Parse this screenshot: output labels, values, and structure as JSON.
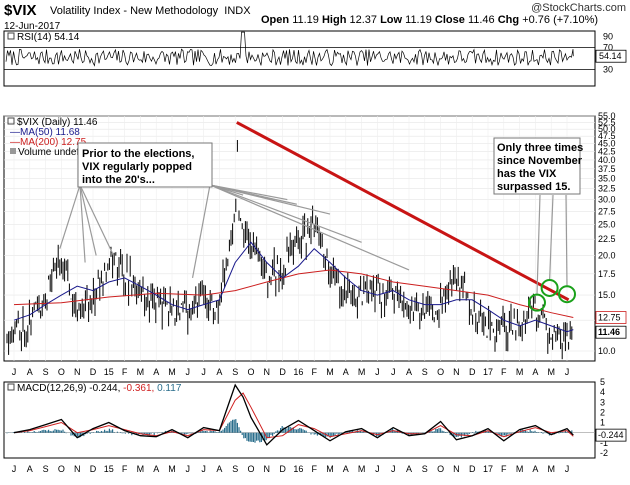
{
  "header": {
    "ticker": "$VIX",
    "full_name": "Volatility Index - New Methodology",
    "exchange": "INDX",
    "date": "12-Jun-2017",
    "open_label": "Open",
    "open": "11.19",
    "high_label": "High",
    "high": "12.37",
    "low_label": "Low",
    "low": "11.19",
    "close_label": "Close",
    "close": "11.46",
    "chg_label": "Chg",
    "chg": "+0.76 (+7.10%)",
    "logo": "@StockCharts.com"
  },
  "colors": {
    "price": "#000000",
    "ma50": "#1a1a8c",
    "ma200": "#cc1f1f",
    "trendline": "#c81414",
    "callout": "#9a9a9a",
    "circles": "#1aa11a",
    "macd_hist": "#2a6e8c",
    "macd_signal": "#d02020",
    "close_tag": "#ffffff"
  },
  "chart_data": [
    {
      "type": "line",
      "name": "rsi_panel",
      "legend": "RSI(14) 54.14",
      "last_value": 54.14,
      "last_value_label": "54.14",
      "ylim": [
        0,
        100
      ],
      "reference_lines": [
        30,
        70
      ],
      "yticks": [
        30,
        50,
        70,
        90
      ],
      "ytick_labels": [
        "30",
        "50",
        "70",
        "90"
      ]
    },
    {
      "type": "line",
      "name": "price_panel",
      "legend": [
        {
          "label": "$VIX (Daily) 11.46",
          "icon": "chart-icon"
        },
        {
          "label": "MA(50) 11.68"
        },
        {
          "label": "MA(200) 12.75"
        },
        {
          "label": "Volume undef"
        }
      ],
      "y_scale": "log",
      "ylim": [
        9.3,
        55
      ],
      "yticks": [
        10,
        12.5,
        15,
        17.5,
        20,
        22.5,
        25,
        27.5,
        30,
        32.5,
        35,
        37.5,
        40,
        42.5,
        45,
        47.5,
        50,
        52.5,
        55
      ],
      "ytick_labels": [
        "10.0",
        "12.5",
        "15.0",
        "17.5",
        "20.0",
        "22.5",
        "25.0",
        "27.5",
        "30.0",
        "32.5",
        "35.0",
        "37.5",
        "40.0",
        "42.5",
        "45.0",
        "47.5",
        "50.0",
        "52.5",
        "55.0"
      ],
      "x_months": [
        "J",
        "A",
        "S",
        "O",
        "N",
        "D",
        "15",
        "F",
        "M",
        "A",
        "M",
        "J",
        "J",
        "A",
        "S",
        "O",
        "N",
        "D",
        "16",
        "F",
        "M",
        "A",
        "M",
        "J",
        "J",
        "A",
        "S",
        "O",
        "N",
        "D",
        "17",
        "F",
        "M",
        "A",
        "M",
        "J"
      ],
      "series": [
        {
          "name": "$VIX (Daily)",
          "style": "hlc-bars",
          "x": [
            0,
            1,
            2,
            3,
            4,
            5,
            6,
            7,
            8,
            9,
            10,
            11,
            12,
            13,
            14,
            15,
            16,
            17,
            18,
            19,
            20,
            21,
            22,
            23,
            24,
            25,
            26,
            27,
            28,
            29,
            30,
            31,
            32,
            33,
            34,
            35,
            35.4
          ],
          "values": [
            11.5,
            12.5,
            15,
            19.5,
            13.5,
            14.5,
            20,
            17.5,
            15,
            14.5,
            13.5,
            13.5,
            14.5,
            13,
            28,
            22,
            17,
            18,
            22,
            24,
            18,
            15,
            15,
            15.5,
            15,
            13.5,
            13.5,
            14,
            17.5,
            13.5,
            12,
            11.5,
            12,
            13.5,
            11,
            10.5,
            11.46
          ]
        },
        {
          "name": "MA(50)",
          "x": [
            0,
            1,
            2,
            3,
            4,
            5,
            6,
            7,
            8,
            9,
            10,
            11,
            12,
            13,
            14,
            15,
            16,
            17,
            18,
            19,
            20,
            21,
            22,
            23,
            24,
            25,
            26,
            27,
            28,
            29,
            30,
            31,
            32,
            33,
            34,
            35,
            35.4
          ],
          "values": [
            12.5,
            13,
            14,
            15,
            16,
            15.5,
            16.5,
            17,
            16,
            15,
            14,
            13.5,
            14,
            14.5,
            19,
            22,
            19,
            17,
            18.5,
            21,
            19,
            17,
            15.5,
            15,
            15.5,
            14.5,
            14,
            14,
            14.5,
            14.5,
            13.5,
            12.5,
            12,
            12.5,
            12,
            11.5,
            11.68
          ]
        },
        {
          "name": "MA(200)",
          "x": [
            0,
            3,
            6,
            9,
            12,
            14,
            16,
            18,
            20,
            22,
            24,
            26,
            28,
            30,
            32,
            34,
            35.4
          ],
          "values": [
            14,
            14.2,
            14.8,
            15.2,
            15,
            15.5,
            16.5,
            17.5,
            18,
            17.5,
            16.5,
            16,
            15.5,
            15,
            14,
            13.2,
            12.75
          ]
        }
      ],
      "last_close_label": "11.46",
      "ma200_last_label": "12.75",
      "trendline": {
        "from": {
          "x": 14.1,
          "y": 52.5
        },
        "to": {
          "x": 35.1,
          "y": 14.5
        }
      },
      "annotations": [
        {
          "text": [
            "Prior to the elections,",
            "VIX regularly popped",
            "into the 20's..."
          ]
        },
        {
          "text": [
            "Only three times",
            "since November",
            "has the VIX",
            "surpassed 15."
          ]
        }
      ],
      "callout_targets": [
        {
          "x": 2.9,
          "y": 21
        },
        {
          "x": 4.5,
          "y": 19
        },
        {
          "x": 5.2,
          "y": 20
        },
        {
          "x": 6.3,
          "y": 20
        },
        {
          "x": 11.3,
          "y": 17
        },
        {
          "x": 14.5,
          "y": 31
        },
        {
          "x": 16.5,
          "y": 30
        },
        {
          "x": 17.3,
          "y": 30
        },
        {
          "x": 17.9,
          "y": 29
        },
        {
          "x": 20,
          "y": 27
        },
        {
          "x": 22,
          "y": 22
        },
        {
          "x": 25,
          "y": 18
        }
      ],
      "highlighted_peaks": [
        {
          "x": 33.1,
          "y": 14.2
        },
        {
          "x": 33.9,
          "y": 15.8
        },
        {
          "x": 35,
          "y": 15.1
        }
      ]
    },
    {
      "type": "line",
      "name": "macd_panel",
      "legend": [
        {
          "label": "MACD(12,26,9)",
          "value": "-0.244"
        },
        {
          "value": "-0.361"
        },
        {
          "value": "0.117"
        }
      ],
      "ylim": [
        -2.5,
        5
      ],
      "yticks": [
        -2,
        -1,
        0,
        1,
        2,
        3,
        4,
        5
      ],
      "ytick_labels": [
        "-2",
        "-1",
        "",
        "1",
        "2",
        "3",
        "4",
        "5"
      ],
      "last_macd_label": "-0.244",
      "x_months": [
        "J",
        "A",
        "S",
        "O",
        "N",
        "D",
        "15",
        "F",
        "M",
        "A",
        "M",
        "J",
        "J",
        "A",
        "S",
        "O",
        "N",
        "D",
        "16",
        "F",
        "M",
        "A",
        "M",
        "J",
        "J",
        "A",
        "S",
        "O",
        "N",
        "D",
        "17",
        "F",
        "M",
        "A",
        "M",
        "J"
      ],
      "series": [
        {
          "name": "MACD",
          "x": [
            0,
            1,
            2,
            3,
            4,
            5,
            6,
            7,
            8,
            9,
            10,
            11,
            12,
            13,
            14,
            14.5,
            15,
            16,
            17,
            18,
            19,
            20,
            21,
            22,
            23,
            24,
            25,
            26,
            27,
            28,
            29,
            30,
            31,
            32,
            33,
            34,
            35,
            35.4
          ],
          "values": [
            0,
            0.3,
            0.8,
            1.3,
            -0.5,
            0.4,
            1,
            0.2,
            -0.3,
            -0.4,
            0.3,
            -0.5,
            0.5,
            0.2,
            4.7,
            3.5,
            1.5,
            -1.2,
            0.3,
            1.2,
            0.2,
            -0.8,
            0.1,
            0.4,
            -0.5,
            0.5,
            -0.3,
            -0.1,
            1.1,
            -0.7,
            -0.3,
            0.4,
            -0.8,
            0.3,
            0.7,
            -0.2,
            0.4,
            -0.244
          ]
        },
        {
          "name": "Signal",
          "x": [
            0,
            1,
            2,
            3,
            4,
            5,
            6,
            7,
            8,
            9,
            10,
            11,
            12,
            13,
            14,
            14.5,
            15,
            16,
            17,
            18,
            19,
            20,
            21,
            22,
            23,
            24,
            25,
            26,
            27,
            28,
            29,
            30,
            31,
            32,
            33,
            34,
            35,
            35.4
          ],
          "values": [
            0,
            0.2,
            0.6,
            1,
            0,
            0.3,
            0.7,
            0.3,
            -0.1,
            -0.3,
            0.1,
            -0.3,
            0.3,
            0.2,
            3.2,
            3.9,
            2.5,
            -0.5,
            -0.3,
            0.8,
            0.4,
            -0.4,
            -0.1,
            0.2,
            -0.2,
            0.2,
            -0.1,
            -0.1,
            0.7,
            -0.2,
            -0.3,
            0.2,
            -0.4,
            0.1,
            0.5,
            0,
            0.2,
            -0.361
          ]
        },
        {
          "name": "Histogram",
          "x": [
            0,
            1,
            2,
            3,
            4,
            5,
            6,
            7,
            8,
            9,
            10,
            11,
            12,
            13,
            14,
            14.5,
            15,
            16,
            17,
            18,
            19,
            20,
            21,
            22,
            23,
            24,
            25,
            26,
            27,
            28,
            29,
            30,
            31,
            32,
            33,
            34,
            35,
            35.4
          ],
          "values": [
            0,
            0.1,
            0.2,
            0.3,
            -0.5,
            0.1,
            0.3,
            -0.1,
            -0.2,
            -0.1,
            0.2,
            -0.2,
            0.2,
            0,
            1.5,
            -0.4,
            -1,
            -0.7,
            0.6,
            0.4,
            -0.2,
            -0.4,
            0.2,
            0.2,
            -0.3,
            0.3,
            -0.2,
            0,
            0.4,
            -0.5,
            0,
            0.2,
            -0.4,
            0.2,
            0.2,
            -0.2,
            0.2,
            0.117
          ]
        }
      ]
    }
  ]
}
